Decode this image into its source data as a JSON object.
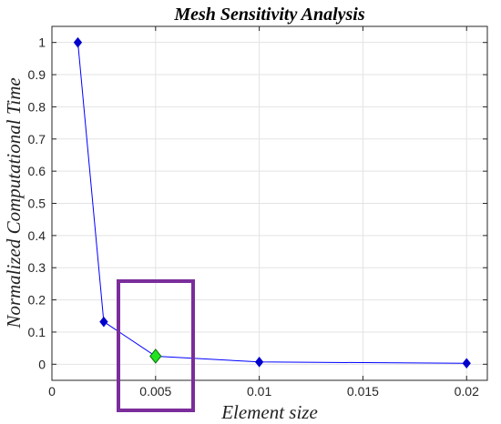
{
  "chart_data": {
    "type": "line",
    "title": "Mesh Sensitivity Analysis",
    "xlabel": "Element size",
    "ylabel": "Normalized Computational Time",
    "xlim": [
      0,
      0.021
    ],
    "ylim": [
      -0.05,
      1.05
    ],
    "xticks": [
      "0",
      "0.005",
      "0.01",
      "0.015",
      "0.02"
    ],
    "yticks": [
      "0",
      "0.1",
      "0.2",
      "0.3",
      "0.4",
      "0.5",
      "0.6",
      "0.7",
      "0.8",
      "0.9",
      "1"
    ],
    "grid": true,
    "series": [
      {
        "x": [
          0.00125,
          0.0025,
          0.005,
          0.01,
          0.02
        ],
        "y": [
          1.0,
          0.132,
          0.025,
          0.007,
          0.003
        ],
        "line_color": "#0000ff",
        "marker_color": "#0000cc",
        "marker": "diamond"
      }
    ],
    "highlighted_point": {
      "x": 0.005,
      "y": 0.025,
      "color": "#22e322"
    },
    "highlight_box_color": "#7b2d9b"
  }
}
